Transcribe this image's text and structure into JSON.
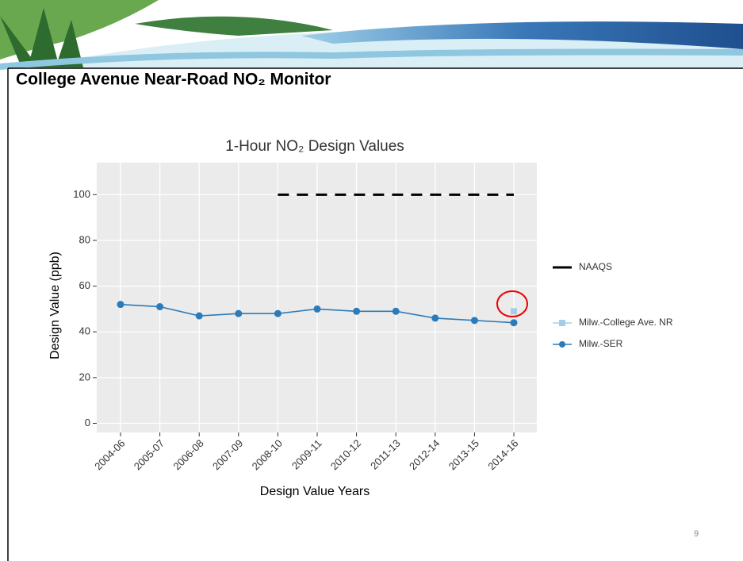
{
  "slide": {
    "title": "College Avenue Near-Road NO₂ Monitor",
    "page_number": 9
  },
  "chart_data": {
    "type": "line",
    "title": "1-Hour NO₂ Design Values",
    "x_label": "Design Value Years",
    "y_label": "Design Value (ppb)",
    "categories": [
      "2004-06",
      "2005-07",
      "2006-08",
      "2007-09",
      "2008-10",
      "2009-11",
      "2010-12",
      "2011-13",
      "2012-14",
      "2013-15",
      "2014-16"
    ],
    "series": [
      {
        "name": "NAAQS",
        "color": "#000000",
        "line_style": "dashed",
        "values": [
          null,
          null,
          null,
          null,
          100,
          100,
          100,
          100,
          100,
          100,
          100
        ]
      },
      {
        "name": "Milw.-College Ave. NR",
        "color": "#a6cde8",
        "marker": "square",
        "values": [
          null,
          null,
          null,
          null,
          null,
          null,
          null,
          null,
          null,
          null,
          49
        ]
      },
      {
        "name": "Milw.-SER",
        "color": "#2b7bba",
        "marker": "circle",
        "values": [
          52,
          51,
          47,
          48,
          48,
          50,
          49,
          49,
          46,
          45,
          44
        ]
      }
    ],
    "ylim": [
      -4,
      114
    ],
    "yticks": [
      0,
      20,
      40,
      60,
      80,
      100
    ],
    "grid": true,
    "legend": "right"
  }
}
